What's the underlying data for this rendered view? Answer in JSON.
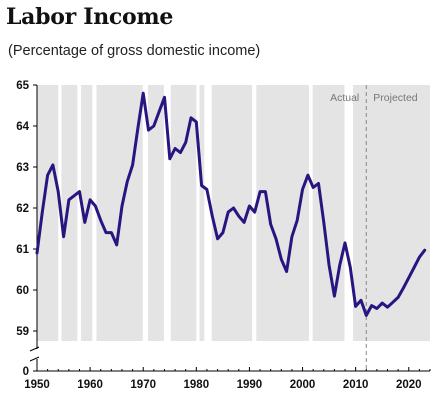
{
  "title": "Labor Income",
  "subtitle": "(Percentage of gross domestic income)",
  "colors": {
    "line": "#2a1580",
    "recession": "#e4e4e4",
    "projection_divider": "#888888",
    "axis": "#000000"
  },
  "chart_data": {
    "type": "line",
    "title": "Labor Income",
    "subtitle": "(Percentage of gross domestic income)",
    "xlabel": "",
    "ylabel": "",
    "xlim": [
      1950,
      2024
    ],
    "ylim_upper": [
      59,
      65
    ],
    "axis_break": true,
    "y_ticks": [
      0,
      59,
      60,
      61,
      62,
      63,
      64,
      65
    ],
    "x_ticks": [
      1950,
      1960,
      1970,
      1980,
      1990,
      2000,
      2010,
      2020
    ],
    "legend_annotations": {
      "actual": "Actual",
      "projected": "Projected",
      "divider_year": 2012
    },
    "shaded_periods": [
      [
        1950,
        1954.0
      ],
      [
        1954.6,
        1957.6
      ],
      [
        1958.3,
        1960.4
      ],
      [
        1961.2,
        1969.9
      ],
      [
        1970.9,
        1973.9
      ],
      [
        1975.2,
        1980.0
      ],
      [
        1980.6,
        1981.5
      ],
      [
        1982.9,
        1990.5
      ],
      [
        1991.3,
        2001.2
      ],
      [
        2001.9,
        2007.9
      ],
      [
        2009.5,
        2024
      ]
    ],
    "series": [
      {
        "name": "",
        "points": [
          [
            1950,
            60.9
          ],
          [
            1951,
            61.9
          ],
          [
            1952,
            62.8
          ],
          [
            1953,
            63.05
          ],
          [
            1954,
            62.4
          ],
          [
            1955,
            61.3
          ],
          [
            1956,
            62.2
          ],
          [
            1957,
            62.3
          ],
          [
            1958,
            62.4
          ],
          [
            1959,
            61.65
          ],
          [
            1960,
            62.2
          ],
          [
            1961,
            62.05
          ],
          [
            1962,
            61.7
          ],
          [
            1963,
            61.4
          ],
          [
            1964,
            61.4
          ],
          [
            1965,
            61.1
          ],
          [
            1966,
            62.05
          ],
          [
            1967,
            62.65
          ],
          [
            1968,
            63.05
          ],
          [
            1969,
            63.95
          ],
          [
            1970,
            64.8
          ],
          [
            1971,
            63.9
          ],
          [
            1972,
            64.0
          ],
          [
            1973,
            64.35
          ],
          [
            1974,
            64.7
          ],
          [
            1975,
            63.2
          ],
          [
            1976,
            63.45
          ],
          [
            1977,
            63.35
          ],
          [
            1978,
            63.6
          ],
          [
            1979,
            64.2
          ],
          [
            1980,
            64.1
          ],
          [
            1981,
            62.55
          ],
          [
            1982,
            62.45
          ],
          [
            1983,
            61.8
          ],
          [
            1984,
            61.25
          ],
          [
            1985,
            61.4
          ],
          [
            1986,
            61.9
          ],
          [
            1987,
            62.0
          ],
          [
            1988,
            61.8
          ],
          [
            1989,
            61.65
          ],
          [
            1990,
            62.05
          ],
          [
            1991,
            61.9
          ],
          [
            1992,
            62.4
          ],
          [
            1993,
            62.4
          ],
          [
            1994,
            61.6
          ],
          [
            1995,
            61.25
          ],
          [
            1996,
            60.75
          ],
          [
            1997,
            60.45
          ],
          [
            1998,
            61.3
          ],
          [
            1999,
            61.7
          ],
          [
            2000,
            62.45
          ],
          [
            2001,
            62.8
          ],
          [
            2002,
            62.5
          ],
          [
            2003,
            62.6
          ],
          [
            2004,
            61.65
          ],
          [
            2005,
            60.6
          ],
          [
            2006,
            59.85
          ],
          [
            2007,
            60.6
          ],
          [
            2008,
            61.15
          ],
          [
            2009,
            60.55
          ],
          [
            2010,
            59.6
          ],
          [
            2011,
            59.75
          ],
          [
            2012,
            59.38
          ],
          [
            2013,
            59.62
          ],
          [
            2014,
            59.55
          ],
          [
            2015,
            59.68
          ],
          [
            2016,
            59.58
          ],
          [
            2017,
            59.7
          ],
          [
            2018,
            59.82
          ],
          [
            2019,
            60.05
          ],
          [
            2020,
            60.3
          ],
          [
            2021,
            60.55
          ],
          [
            2022,
            60.8
          ],
          [
            2023,
            60.97
          ]
        ]
      }
    ]
  }
}
